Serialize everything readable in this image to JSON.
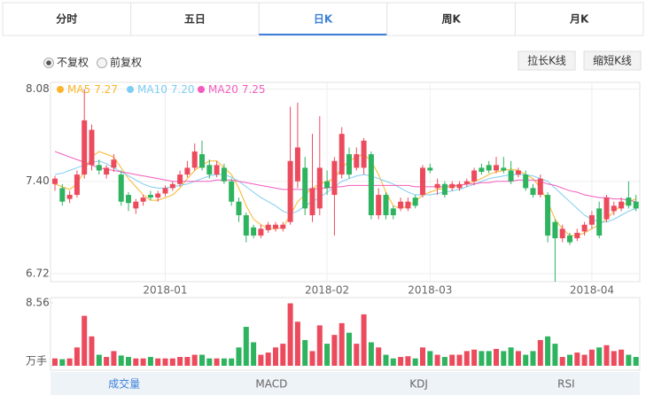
{
  "tabs": [
    "分时",
    "五日",
    "日K",
    "周K",
    "月K"
  ],
  "active_tab": 2,
  "adjust_options": [
    "不复权",
    "前复权"
  ],
  "adjust_selected": 0,
  "buttons": [
    "拉长K线",
    "缩短K线"
  ],
  "chart_data": [
    {
      "type": "candlestick",
      "categories": [
        null,
        null,
        null,
        null,
        null,
        null,
        null,
        null,
        null,
        null,
        null,
        null,
        null,
        null,
        null,
        "2018-01",
        null,
        null,
        null,
        null,
        null,
        null,
        null,
        null,
        null,
        null,
        null,
        null,
        null,
        null,
        null,
        null,
        null,
        null,
        null,
        null,
        null,
        "2018-02",
        null,
        null,
        null,
        null,
        null,
        null,
        null,
        null,
        null,
        null,
        null,
        null,
        null,
        "2018-03",
        null,
        null,
        null,
        null,
        null,
        null,
        null,
        null,
        null,
        null,
        null,
        null,
        null,
        null,
        null,
        null,
        null,
        null,
        null,
        null,
        null,
        "2018-04",
        null,
        null,
        null,
        null,
        null,
        null
      ],
      "ohlc": [
        [
          7.38,
          7.44,
          7.33,
          7.42
        ],
        [
          7.35,
          7.38,
          7.22,
          7.25
        ],
        [
          7.27,
          7.33,
          7.24,
          7.3
        ],
        [
          7.3,
          7.48,
          7.28,
          7.45
        ],
        [
          7.45,
          8.08,
          7.42,
          7.85
        ],
        [
          7.52,
          7.82,
          7.48,
          7.78
        ],
        [
          7.52,
          7.56,
          7.45,
          7.48
        ],
        [
          7.45,
          7.52,
          7.42,
          7.5
        ],
        [
          7.5,
          7.6,
          7.47,
          7.56
        ],
        [
          7.45,
          7.48,
          7.22,
          7.25
        ],
        [
          7.3,
          7.32,
          7.18,
          7.24
        ],
        [
          7.2,
          7.27,
          7.16,
          7.25
        ],
        [
          7.25,
          7.3,
          7.22,
          7.28
        ],
        [
          7.3,
          7.33,
          7.26,
          7.28
        ],
        [
          7.28,
          7.33,
          7.25,
          7.31
        ],
        [
          7.31,
          7.37,
          7.29,
          7.35
        ],
        [
          7.35,
          7.4,
          7.33,
          7.38
        ],
        [
          7.38,
          7.48,
          7.36,
          7.45
        ],
        [
          7.45,
          7.55,
          7.43,
          7.5
        ],
        [
          7.5,
          7.68,
          7.48,
          7.62
        ],
        [
          7.6,
          7.7,
          7.48,
          7.5
        ],
        [
          7.52,
          7.56,
          7.42,
          7.45
        ],
        [
          7.45,
          7.55,
          7.43,
          7.52
        ],
        [
          7.5,
          7.53,
          7.38,
          7.4
        ],
        [
          7.4,
          7.42,
          7.22,
          7.25
        ],
        [
          7.25,
          7.28,
          7.1,
          7.15
        ],
        [
          7.15,
          7.17,
          6.95,
          7.0
        ],
        [
          7.06,
          7.08,
          6.98,
          7.0
        ],
        [
          7.0,
          7.08,
          6.98,
          7.05
        ],
        [
          7.04,
          7.1,
          7.02,
          7.08
        ],
        [
          7.05,
          7.1,
          7.03,
          7.08
        ],
        [
          7.05,
          7.1,
          7.03,
          7.08
        ],
        [
          7.1,
          7.95,
          7.08,
          7.55
        ],
        [
          7.4,
          7.98,
          7.35,
          7.65
        ],
        [
          7.5,
          7.58,
          7.15,
          7.2
        ],
        [
          7.15,
          7.75,
          7.1,
          7.35
        ],
        [
          7.2,
          7.88,
          7.15,
          7.5
        ],
        [
          7.4,
          7.48,
          7.3,
          7.35
        ],
        [
          7.3,
          7.58,
          7.0,
          7.55
        ],
        [
          7.45,
          7.8,
          7.42,
          7.75
        ],
        [
          7.6,
          7.65,
          7.42,
          7.45
        ],
        [
          7.5,
          7.65,
          7.48,
          7.6
        ],
        [
          7.5,
          7.72,
          7.45,
          7.7
        ],
        [
          7.6,
          7.62,
          7.12,
          7.15
        ],
        [
          7.15,
          7.35,
          7.12,
          7.3
        ],
        [
          7.3,
          7.32,
          7.12,
          7.15
        ],
        [
          7.2,
          7.22,
          7.12,
          7.15
        ],
        [
          7.2,
          7.28,
          7.18,
          7.25
        ],
        [
          7.2,
          7.28,
          7.18,
          7.25
        ],
        [
          7.28,
          7.3,
          7.2,
          7.22
        ],
        [
          7.3,
          7.52,
          7.28,
          7.5
        ],
        [
          7.5,
          7.53,
          7.46,
          7.48
        ],
        [
          7.35,
          7.42,
          7.3,
          7.38
        ],
        [
          7.38,
          7.4,
          7.28,
          7.3
        ],
        [
          7.35,
          7.4,
          7.33,
          7.38
        ],
        [
          7.35,
          7.4,
          7.33,
          7.38
        ],
        [
          7.38,
          7.42,
          7.36,
          7.4
        ],
        [
          7.4,
          7.5,
          7.37,
          7.48
        ],
        [
          7.5,
          7.53,
          7.45,
          7.47
        ],
        [
          7.52,
          7.55,
          7.46,
          7.48
        ],
        [
          7.48,
          7.58,
          7.46,
          7.52
        ],
        [
          7.5,
          7.58,
          7.46,
          7.48
        ],
        [
          7.48,
          7.55,
          7.38,
          7.4
        ],
        [
          7.45,
          7.5,
          7.43,
          7.48
        ],
        [
          7.45,
          7.48,
          7.33,
          7.35
        ],
        [
          7.35,
          7.38,
          7.28,
          7.3
        ],
        [
          7.3,
          7.45,
          7.28,
          7.42
        ],
        [
          7.3,
          7.32,
          6.95,
          7.0
        ],
        [
          7.1,
          7.12,
          6.66,
          6.98
        ],
        [
          6.98,
          7.08,
          6.95,
          7.05
        ],
        [
          7.0,
          7.02,
          6.93,
          6.95
        ],
        [
          6.98,
          7.05,
          6.96,
          7.02
        ],
        [
          7.03,
          7.1,
          7.0,
          7.08
        ],
        [
          7.08,
          7.18,
          7.05,
          7.15
        ],
        [
          7.2,
          7.25,
          6.98,
          7.0
        ],
        [
          7.12,
          7.3,
          7.1,
          7.28
        ],
        [
          7.18,
          7.25,
          7.15,
          7.22
        ],
        [
          7.2,
          7.28,
          7.18,
          7.25
        ],
        [
          7.28,
          7.4,
          7.2,
          7.22
        ],
        [
          7.25,
          7.3,
          7.18,
          7.2
        ]
      ],
      "up_color": "#ec4b5d",
      "down_color": "#2eb35f",
      "ylim": [
        6.66,
        8.13
      ],
      "yticks": [
        6.72,
        {
          "value": 7.4,
          "label": "7.40"
        },
        8.08
      ],
      "grid": true,
      "series": [
        {
          "name": "MA5",
          "color": "#fbb52b",
          "values": [
            7.38,
            7.36,
            7.34,
            7.38,
            7.48,
            7.58,
            7.62,
            7.6,
            7.58,
            7.5,
            7.42,
            7.36,
            7.3,
            7.26,
            7.26,
            7.28,
            7.3,
            7.35,
            7.42,
            7.48,
            7.52,
            7.55,
            7.55,
            7.5,
            7.45,
            7.35,
            7.22,
            7.12,
            7.08,
            7.05,
            7.05,
            7.06,
            7.15,
            7.25,
            7.3,
            7.35,
            7.38,
            7.4,
            7.42,
            7.5,
            7.55,
            7.58,
            7.6,
            7.55,
            7.45,
            7.32,
            7.22,
            7.2,
            7.22,
            7.25,
            7.3,
            7.32,
            7.34,
            7.35,
            7.36,
            7.37,
            7.38,
            7.4,
            7.42,
            7.45,
            7.47,
            7.48,
            7.49,
            7.48,
            7.45,
            7.42,
            7.35,
            7.25,
            7.12,
            7.05,
            7.0,
            7.0,
            7.02,
            7.05,
            7.08,
            7.12,
            7.18,
            7.22,
            7.25,
            7.27
          ],
          "value_labels": [
            null,
            null,
            null,
            null,
            null,
            null,
            null,
            null,
            null,
            null,
            null,
            null,
            null,
            null,
            null,
            null,
            null,
            null,
            null,
            null,
            null,
            null,
            null,
            null,
            null,
            null,
            null,
            null,
            null,
            null,
            null,
            null,
            null,
            null,
            null,
            null,
            null,
            null,
            null,
            null,
            null,
            null,
            null,
            null,
            null,
            null,
            null,
            null,
            null,
            null,
            null,
            null,
            null,
            null,
            null,
            null,
            null,
            null,
            null,
            null,
            null,
            null,
            null,
            null,
            null,
            null,
            null,
            null,
            null,
            null,
            null,
            null,
            null,
            null,
            null,
            null,
            null,
            null,
            null,
            "7.27"
          ]
        },
        {
          "name": "MA10",
          "color": "#7ecdf2",
          "values": [
            7.45,
            7.46,
            7.48,
            7.5,
            7.52,
            7.54,
            7.55,
            7.53,
            7.5,
            7.47,
            7.44,
            7.41,
            7.38,
            7.36,
            7.35,
            7.35,
            7.36,
            7.37,
            7.38,
            7.4,
            7.42,
            7.44,
            7.45,
            7.45,
            7.43,
            7.4,
            7.36,
            7.32,
            7.28,
            7.25,
            7.22,
            7.18,
            7.16,
            7.18,
            7.22,
            7.25,
            7.28,
            7.32,
            7.36,
            7.4,
            7.42,
            7.44,
            7.45,
            7.44,
            7.42,
            7.4,
            7.38,
            7.35,
            7.32,
            7.3,
            7.3,
            7.3,
            7.31,
            7.32,
            7.33,
            7.34,
            7.36,
            7.38,
            7.4,
            7.42,
            7.43,
            7.44,
            7.45,
            7.45,
            7.45,
            7.44,
            7.42,
            7.4,
            7.35,
            7.3,
            7.25,
            7.2,
            7.15,
            7.12,
            7.1,
            7.1,
            7.12,
            7.15,
            7.18,
            7.2
          ],
          "value_labels": [
            null,
            null,
            null,
            null,
            null,
            null,
            null,
            null,
            null,
            null,
            null,
            null,
            null,
            null,
            null,
            null,
            null,
            null,
            null,
            null,
            null,
            null,
            null,
            null,
            null,
            null,
            null,
            null,
            null,
            null,
            null,
            null,
            null,
            null,
            null,
            null,
            null,
            null,
            null,
            null,
            null,
            null,
            null,
            null,
            null,
            null,
            null,
            null,
            null,
            null,
            null,
            null,
            null,
            null,
            null,
            null,
            null,
            null,
            null,
            null,
            null,
            null,
            null,
            null,
            null,
            null,
            null,
            null,
            null,
            null,
            null,
            null,
            null,
            null,
            null,
            null,
            null,
            null,
            null,
            "7.20"
          ]
        },
        {
          "name": "MA20",
          "color": "#f25bbc",
          "values": [
            7.62,
            7.6,
            7.58,
            7.56,
            7.54,
            7.52,
            7.5,
            7.49,
            7.48,
            7.47,
            7.46,
            7.45,
            7.44,
            7.43,
            7.42,
            7.41,
            7.4,
            7.4,
            7.4,
            7.4,
            7.4,
            7.4,
            7.41,
            7.41,
            7.41,
            7.4,
            7.39,
            7.38,
            7.37,
            7.36,
            7.35,
            7.34,
            7.34,
            7.34,
            7.34,
            7.34,
            7.35,
            7.35,
            7.36,
            7.36,
            7.37,
            7.37,
            7.37,
            7.37,
            7.37,
            7.37,
            7.37,
            7.37,
            7.37,
            7.36,
            7.36,
            7.36,
            7.36,
            7.36,
            7.37,
            7.37,
            7.38,
            7.38,
            7.39,
            7.39,
            7.4,
            7.4,
            7.4,
            7.41,
            7.41,
            7.41,
            7.4,
            7.38,
            7.37,
            7.35,
            7.33,
            7.32,
            7.3,
            7.29,
            7.28,
            7.28,
            7.27,
            7.27,
            7.26,
            7.25
          ],
          "value_labels": [
            null,
            null,
            null,
            null,
            null,
            null,
            null,
            null,
            null,
            null,
            null,
            null,
            null,
            null,
            null,
            null,
            null,
            null,
            null,
            null,
            null,
            null,
            null,
            null,
            null,
            null,
            null,
            null,
            null,
            null,
            null,
            null,
            null,
            null,
            null,
            null,
            null,
            null,
            null,
            null,
            null,
            null,
            null,
            null,
            null,
            null,
            null,
            null,
            null,
            null,
            null,
            null,
            null,
            null,
            null,
            null,
            null,
            null,
            null,
            null,
            null,
            null,
            null,
            null,
            null,
            null,
            null,
            null,
            null,
            null,
            null,
            null,
            null,
            null,
            null,
            null,
            null,
            null,
            null,
            "7.25"
          ]
        }
      ]
    },
    {
      "type": "bar",
      "values": [
        1.0,
        0.9,
        1.0,
        2.5,
        6.8,
        4.0,
        1.5,
        1.2,
        2.0,
        1.4,
        1.2,
        1.0,
        1.0,
        1.2,
        1.0,
        1.0,
        1.0,
        1.2,
        1.2,
        1.5,
        1.5,
        1.0,
        1.0,
        1.0,
        1.0,
        2.5,
        5.3,
        3.2,
        1.5,
        1.8,
        2.5,
        3.0,
        8.5,
        6.0,
        3.5,
        2.0,
        5.5,
        3.0,
        4.2,
        5.8,
        4.5,
        3.0,
        7.0,
        3.2,
        2.5,
        1.5,
        1.0,
        1.2,
        1.3,
        1.0,
        2.5,
        2.0,
        1.5,
        1.2,
        1.5,
        1.5,
        2.0,
        2.2,
        2.0,
        2.0,
        2.3,
        2.0,
        2.5,
        2.0,
        1.5,
        2.0,
        3.5,
        4.0,
        3.0,
        1.2,
        1.5,
        1.8,
        1.5,
        2.2,
        2.5,
        2.8,
        2.0,
        2.2,
        1.5,
        1.2
      ],
      "ylim": [
        0,
        8.56
      ],
      "yticks": [
        {
          "value": 0,
          "label": "万手"
        },
        8.56
      ]
    }
  ],
  "indicator_tabs": [
    "成交量",
    "MACD",
    "KDJ",
    "RSI"
  ],
  "active_indicator": 0
}
